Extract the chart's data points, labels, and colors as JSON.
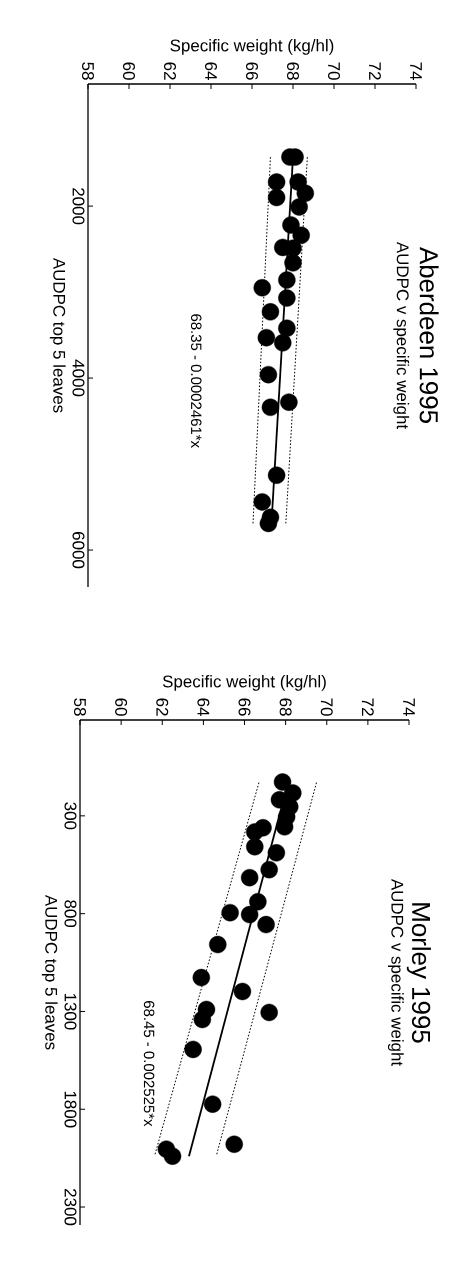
{
  "chart_data": [
    {
      "type": "scatter",
      "title": "Aberdeen 1995",
      "subtitle": "AUDPC v specific weight",
      "xlabel": "Specific weight (kg/hl)",
      "ylabel": "AUDPC top 5 leaves",
      "annotations": [
        "68.35 - 0.0002461*x"
      ],
      "xlim": [
        58,
        74
      ],
      "xticks": [
        58,
        60,
        62,
        64,
        66,
        68,
        70,
        72,
        74
      ],
      "ylim": [
        6430,
        580
      ],
      "yticks": [
        2000,
        4000,
        6000
      ],
      "grid": false,
      "series": [
        {
          "marker": "circle",
          "color": "#000000",
          "x": [
            67.85,
            68.1,
            67.2,
            68.25,
            68.6,
            67.2,
            68.3,
            67.9,
            68.4,
            67.5,
            68.0,
            68.0,
            67.7,
            66.5,
            67.7,
            66.9,
            67.7,
            66.7,
            67.5,
            66.8,
            67.8,
            66.9,
            67.2,
            66.5,
            66.9,
            66.8
          ],
          "values": [
            1430,
            1430,
            1720,
            1720,
            1850,
            1900,
            2010,
            2220,
            2340,
            2480,
            2490,
            2660,
            2860,
            2950,
            3070,
            3230,
            3420,
            3530,
            3590,
            3960,
            4280,
            4340,
            5130,
            5440,
            5620,
            5690
          ]
        },
        {
          "type": "line",
          "marker": "none",
          "color": "#000000",
          "line_style": "solid",
          "x": [
            68.0,
            66.95
          ],
          "values": [
            1430,
            5690
          ]
        },
        {
          "type": "line",
          "marker": "none",
          "color": "#000000",
          "line_style": "dotted",
          "x": [
            66.9,
            66.05
          ],
          "values": [
            1430,
            5690
          ]
        },
        {
          "type": "line",
          "marker": "none",
          "color": "#000000",
          "line_style": "dotted",
          "x": [
            68.7,
            67.65
          ],
          "values": [
            1430,
            5690
          ]
        }
      ]
    },
    {
      "type": "scatter",
      "title": "Morley 1995",
      "subtitle": "AUDPC v specific weight",
      "xlabel": "Specific weight (kg/hl)",
      "ylabel": "AUDPC top 5 leaves",
      "annotations": [
        "68.45 - 0.002525*x"
      ],
      "xlim": [
        58,
        74
      ],
      "xticks": [
        58,
        60,
        62,
        64,
        66,
        68,
        70,
        72,
        74
      ],
      "ylim": [
        2392,
        -190
      ],
      "yticks": [
        300,
        800,
        1300,
        1800,
        2300
      ],
      "grid": false,
      "series": [
        {
          "marker": "circle",
          "color": "#000000",
          "x": [
            67.85,
            68.35,
            67.7,
            68.2,
            68.05,
            67.95,
            66.9,
            66.5,
            66.5,
            67.55,
            67.2,
            66.25,
            66.65,
            65.3,
            66.25,
            67.05,
            64.7,
            63.9,
            65.9,
            64.15,
            67.2,
            63.95,
            63.5,
            64.45,
            65.5,
            62.2,
            62.5
          ],
          "values": [
            127,
            183,
            218,
            254,
            305,
            356,
            361,
            382,
            458,
            489,
            575,
            616,
            739,
            795,
            805,
            856,
            958,
            1127,
            1198,
            1290,
            1305,
            1341,
            1494,
            1774,
            1979,
            2004,
            2040
          ]
        },
        {
          "type": "line",
          "marker": "none",
          "color": "#000000",
          "line_style": "solid",
          "x": [
            68.12,
            63.3
          ],
          "values": [
            130,
            2040
          ]
        },
        {
          "type": "line",
          "marker": "none",
          "color": "#000000",
          "line_style": "dotted",
          "x": [
            66.7,
            61.65
          ],
          "values": [
            130,
            2030
          ]
        },
        {
          "type": "line",
          "marker": "none",
          "color": "#000000",
          "line_style": "dotted",
          "x": [
            69.5,
            64.65
          ],
          "values": [
            130,
            2030
          ]
        }
      ]
    }
  ]
}
